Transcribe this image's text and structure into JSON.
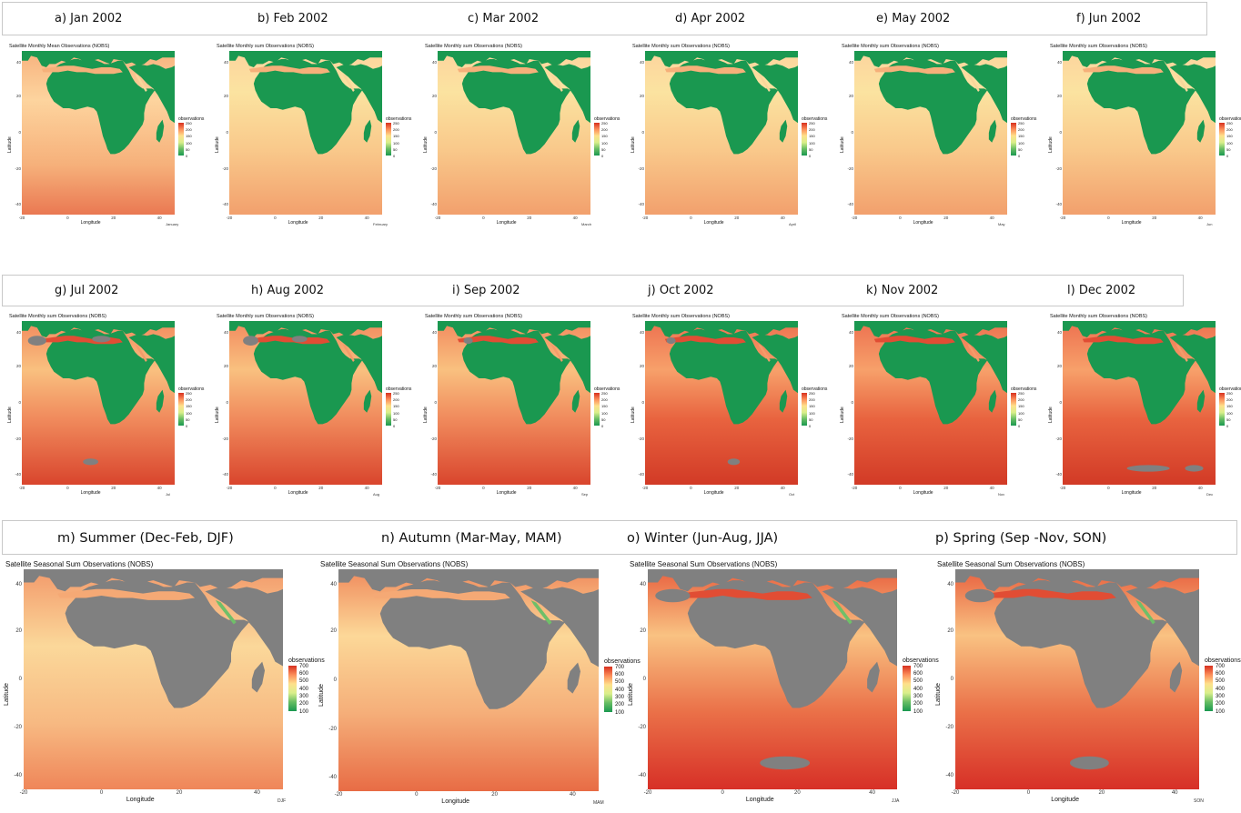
{
  "monthly_title": "Satellite Monthly sum Observations (NOBS)",
  "jan_title": "Satellite Monthly Mean Observations (NOBS)",
  "seasonal_title": "Satellite Seasonal Sum Observations (NOBS)",
  "axis": {
    "xlabel": "Longitude",
    "ylabel": "Latitude",
    "xticks": [
      "-20",
      "0",
      "20",
      "40"
    ],
    "yticks": [
      "40",
      "20",
      "0",
      "-20",
      "-40"
    ]
  },
  "legend_title": "observations",
  "legend_monthly": [
    "250",
    "200",
    "150",
    "100",
    "50",
    "0"
  ],
  "legend_seasonal": [
    "700",
    "600",
    "500",
    "400",
    "300",
    "200",
    "100"
  ],
  "colors": {
    "land_monthly": "#1a9850",
    "land_seasonal": "#808080",
    "ocean_high": "#d73027",
    "ocean_mid": "#f46d43",
    "ocean_low": "#fee08b",
    "missing": "#808080"
  },
  "row1_labels": [
    "a) Jan 2002",
    "b) Feb 2002",
    "c) Mar 2002",
    "d) Apr 2002",
    "e) May 2002",
    "f) Jun 2002"
  ],
  "row2_labels": [
    "g) Jul 2002",
    "h) Aug 2002",
    "i) Sep 2002",
    "j) Oct 2002",
    "k) Nov 2002",
    "l) Dec 2002"
  ],
  "season_labels": [
    "m) Summer (Dec-Feb, DJF)",
    "n) Autumn (Mar-May, MAM)",
    "o) Winter (Jun-Aug, JJA)",
    "p) Spring (Sep -Nov, SON)"
  ],
  "month_names": [
    "January",
    "February",
    "March",
    "April",
    "May",
    "Jun",
    "Jul",
    "Aug",
    "Sep",
    "Oct",
    "Nov",
    "Dec"
  ],
  "season_codes": [
    "DJF",
    "MAM",
    "JJA",
    "SON"
  ]
}
